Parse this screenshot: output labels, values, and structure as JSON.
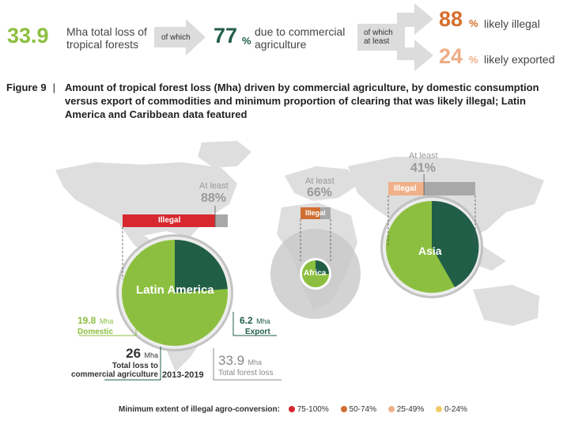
{
  "header": {
    "total_value": "33.9",
    "total_label_line1": "Mha total loss of",
    "total_label_line2": "tropical forests",
    "arrow1_label": "of which",
    "commercial_value": "77",
    "commercial_unit": "%",
    "commercial_label_line1": "due to commercial",
    "commercial_label_line2": "agriculture",
    "arrow2_label_line1": "of which",
    "arrow2_label_line2": "at least",
    "illegal_value": "88",
    "illegal_unit": "%",
    "illegal_label": "likely illegal",
    "exported_value": "24",
    "exported_unit": "%",
    "exported_label": "likely exported"
  },
  "figure": {
    "number": "Figure 9",
    "separator": "|",
    "title_line1": "Amount of tropical forest loss (Mha) driven by commercial agriculture, by domestic consumption",
    "title_line2": "versus export of commodities and minimum proportion of clearing that was likely illegal; Latin",
    "title_line3": "America and Caribbean data featured"
  },
  "colors": {
    "lightGreen": "#8cbf3f",
    "darkGreen": "#215e48",
    "illegalRed": "#d7282f",
    "orange": "#cf6f32",
    "lightOrange": "#f0b08a",
    "yellow": "#f2ca6a",
    "grey": "#a8a8a8",
    "map": "#dedede",
    "headerGreen": "#8cbf3f",
    "headerDarkGreen": "#215e48",
    "headerOrange": "#d66f2c",
    "headerLightOrange": "#eeac84"
  },
  "chart_data": {
    "type": "pie",
    "period": "2013-2019",
    "regions": [
      {
        "name": "Latin America",
        "illegal_label": "Illegal",
        "at_least_label": "At least",
        "illegal_pct": 88,
        "illegal_pct_text": "88%",
        "domestic_mha": 19.8,
        "export_mha": 6.2,
        "total_commercial_mha": 26,
        "total_forest_loss_mha": 33.9
      },
      {
        "name": "Africa",
        "illegal_label": "Illegal",
        "at_least_label": "At least",
        "illegal_pct": 66,
        "illegal_pct_text": "66%"
      },
      {
        "name": "Asia",
        "illegal_label": "Illegal",
        "at_least_label": "At least",
        "illegal_pct": 41,
        "illegal_pct_text": "41%"
      }
    ],
    "latam_labels": {
      "domestic_value": "19.8",
      "domestic_unit": "Mha",
      "domestic_label": "Domestic",
      "export_value": "6.2",
      "export_unit": "Mha",
      "export_label": "Export",
      "commercial_value": "26",
      "commercial_unit": "Mha",
      "commercial_label_line1": "Total loss to",
      "commercial_label_line2": "commercial agriculture",
      "period_label": "2013-2019",
      "forest_value": "33.9",
      "forest_unit": "Mha",
      "forest_label": "Total forest loss"
    },
    "legend": {
      "title": "Minimum extent of illegal agro-conversion:",
      "items": [
        {
          "label": "75-100%",
          "color": "#d7282f"
        },
        {
          "label": "50-74%",
          "color": "#cf6f32"
        },
        {
          "label": "25-49%",
          "color": "#f0b08a"
        },
        {
          "label": "0-24%",
          "color": "#f2ca6a"
        }
      ]
    }
  }
}
